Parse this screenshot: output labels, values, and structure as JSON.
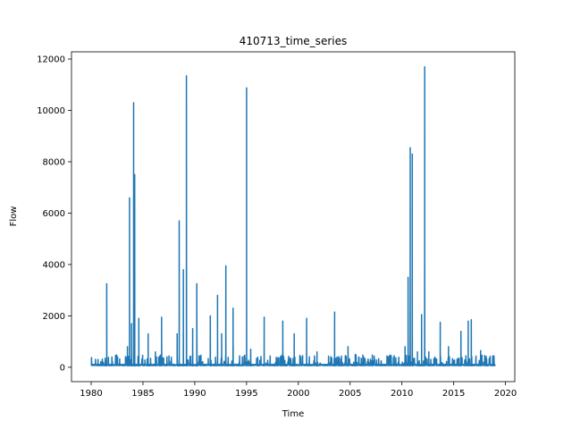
{
  "chart_data": {
    "type": "line",
    "title": "410713_time_series",
    "xlabel": "Time",
    "ylabel": "Flow",
    "xlim": [
      1978.1,
      2020.9
    ],
    "ylim": [
      -560,
      12280
    ],
    "grid": false,
    "color": "#1f77b4",
    "x_ticks": [
      1980,
      1985,
      1990,
      1995,
      2000,
      2005,
      2010,
      2015,
      2020
    ],
    "x_tick_labels": [
      "1980",
      "1985",
      "1990",
      "1995",
      "2000",
      "2005",
      "2010",
      "2015",
      "2020"
    ],
    "y_ticks": [
      0,
      2000,
      4000,
      6000,
      8000,
      10000,
      12000
    ],
    "y_tick_labels": [
      "0",
      "2000",
      "4000",
      "6000",
      "8000",
      "10000",
      "12000"
    ],
    "series": [
      {
        "x_start": 1980.0,
        "x_end": 2019.0,
        "baseline": 60,
        "peaks": [
          [
            1981.5,
            3250
          ],
          [
            1982.0,
            400
          ],
          [
            1983.5,
            800
          ],
          [
            1983.7,
            6600
          ],
          [
            1983.9,
            1700
          ],
          [
            1984.1,
            10300
          ],
          [
            1984.2,
            7500
          ],
          [
            1984.6,
            1900
          ],
          [
            1985.5,
            1300
          ],
          [
            1986.2,
            600
          ],
          [
            1986.8,
            1950
          ],
          [
            1988.3,
            1300
          ],
          [
            1988.5,
            5700
          ],
          [
            1988.9,
            3800
          ],
          [
            1989.2,
            11350
          ],
          [
            1989.8,
            1500
          ],
          [
            1990.2,
            3250
          ],
          [
            1991.5,
            2000
          ],
          [
            1992.2,
            2800
          ],
          [
            1992.6,
            1300
          ],
          [
            1993.0,
            3950
          ],
          [
            1993.7,
            2300
          ],
          [
            1994.6,
            400
          ],
          [
            1995.0,
            10880
          ],
          [
            1995.4,
            700
          ],
          [
            1996.7,
            1950
          ],
          [
            1998.5,
            1800
          ],
          [
            1999.6,
            1300
          ],
          [
            2000.8,
            1900
          ],
          [
            2001.8,
            600
          ],
          [
            2003.5,
            2150
          ],
          [
            2004.8,
            800
          ],
          [
            2005.5,
            500
          ],
          [
            2008.0,
            250
          ],
          [
            2010.3,
            800
          ],
          [
            2010.6,
            3500
          ],
          [
            2010.8,
            8550
          ],
          [
            2011.0,
            8300
          ],
          [
            2011.5,
            600
          ],
          [
            2011.9,
            2050
          ],
          [
            2012.2,
            11700
          ],
          [
            2012.6,
            600
          ],
          [
            2013.7,
            1750
          ],
          [
            2014.5,
            800
          ],
          [
            2015.7,
            1400
          ],
          [
            2016.4,
            1800
          ],
          [
            2016.7,
            1850
          ],
          [
            2017.6,
            650
          ],
          [
            2018.8,
            300
          ]
        ]
      }
    ]
  }
}
